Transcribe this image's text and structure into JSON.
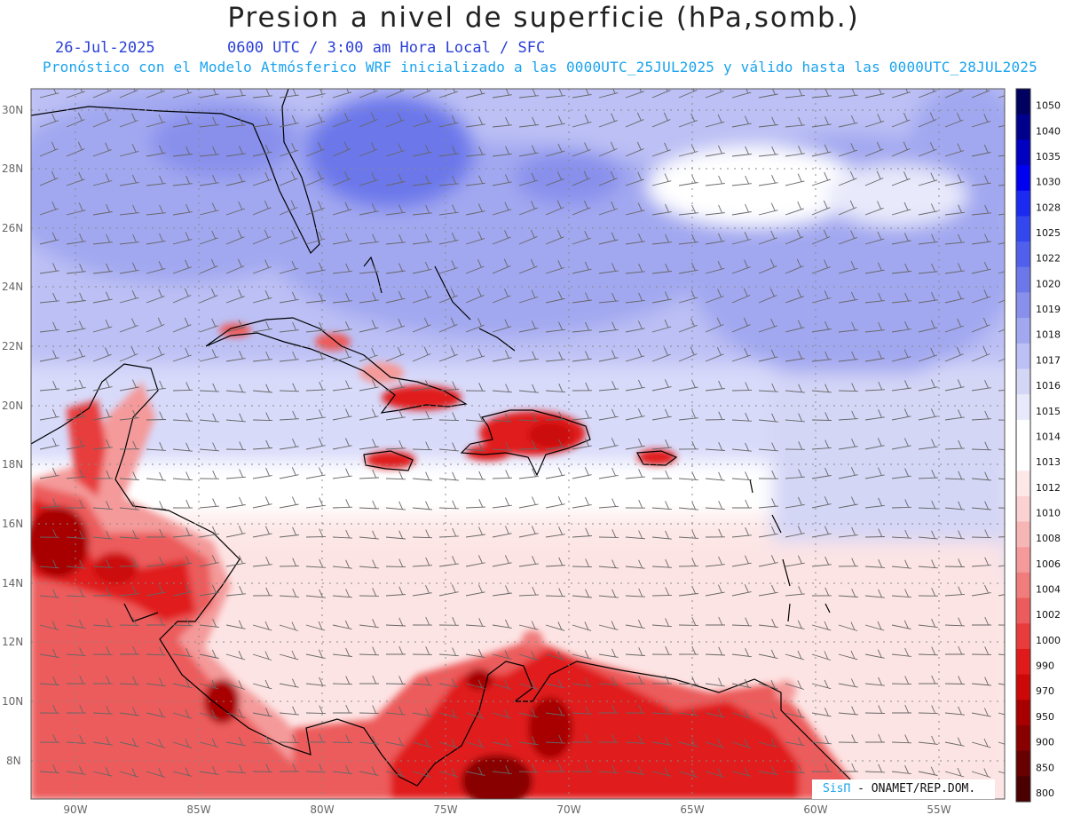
{
  "title": "Presion a nivel de superficie (hPa,somb.)",
  "date": "26-Jul-2025",
  "valid_time": "0600 UTC / 3:00 am Hora Local / SFC",
  "forecast_note": "Pronóstico con el Modelo Atmósferico WRF inicializado a las 0000UTC_25JUL2025 y válido hasta las  0000UTC_28JUL2025",
  "credit_brand": "SisΠ",
  "credit_text": "- ONAMET/REP.DOM.",
  "lat_labels": [
    "30N",
    "28N",
    "26N",
    "24N",
    "22N",
    "20N",
    "18N",
    "16N",
    "14N",
    "12N",
    "10N",
    "8N"
  ],
  "lon_labels": [
    "90W",
    "85W",
    "80W",
    "75W",
    "70W",
    "65W",
    "60W",
    "55W"
  ],
  "colorbar": {
    "levels": [
      "1050",
      "1040",
      "1035",
      "1030",
      "1028",
      "1025",
      "1022",
      "1020",
      "1019",
      "1018",
      "1017",
      "1016",
      "1015",
      "1014",
      "1013",
      "1012",
      "1010",
      "1008",
      "1006",
      "1004",
      "1002",
      "1000",
      "990",
      "970",
      "950",
      "900",
      "850",
      "800"
    ],
    "colors": [
      "#000060",
      "#00008c",
      "#0000c0",
      "#0000f0",
      "#1a2af0",
      "#3446ee",
      "#5060ec",
      "#6c78ea",
      "#8890ec",
      "#a2a8f0",
      "#bcc0f4",
      "#d4d6f6",
      "#e8e9fa",
      "#ffffff",
      "#ffffff",
      "#fde8e8",
      "#fad2d2",
      "#f7b6b6",
      "#f49a9a",
      "#f07c7c",
      "#ec5c5c",
      "#e83c3c",
      "#e01a1a",
      "#cc0808",
      "#a80000",
      "#880000",
      "#680000",
      "#4a0000"
    ]
  }
}
